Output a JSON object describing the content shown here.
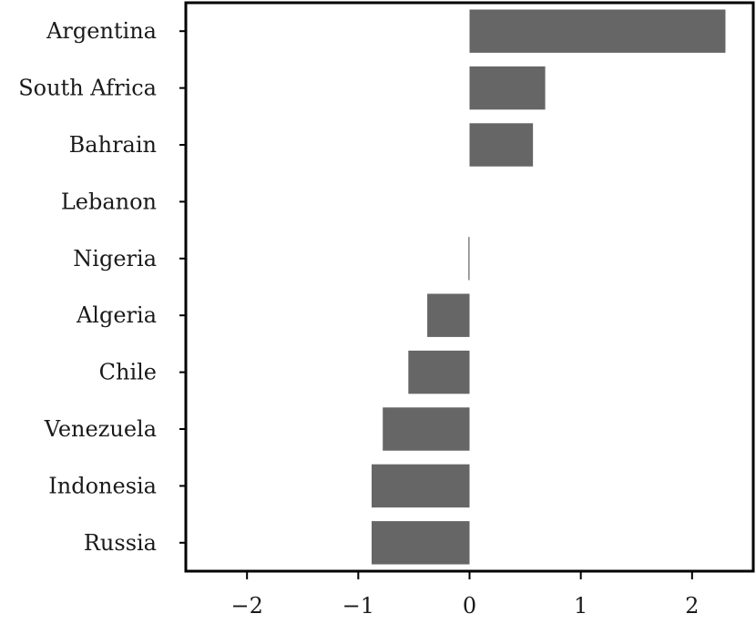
{
  "chart_data": {
    "type": "bar",
    "orientation": "horizontal",
    "title": "",
    "xlabel": "",
    "ylabel": "",
    "categories": [
      "Argentina",
      "South Africa",
      "Bahrain",
      "Lebanon",
      "Nigeria",
      "Algeria",
      "Chile",
      "Venezuela",
      "Indonesia",
      "Russia"
    ],
    "values": [
      2.3,
      0.68,
      0.57,
      0.0,
      -0.01,
      -0.38,
      -0.55,
      -0.78,
      -0.88,
      -0.88
    ],
    "xlim": [
      -2.55,
      2.55
    ],
    "xticks": [
      -2,
      -1,
      0,
      1,
      2
    ],
    "xtick_labels": [
      "−2",
      "−1",
      "0",
      "1",
      "2"
    ],
    "grid": false,
    "legend": "none",
    "bar_color": "#666666"
  }
}
